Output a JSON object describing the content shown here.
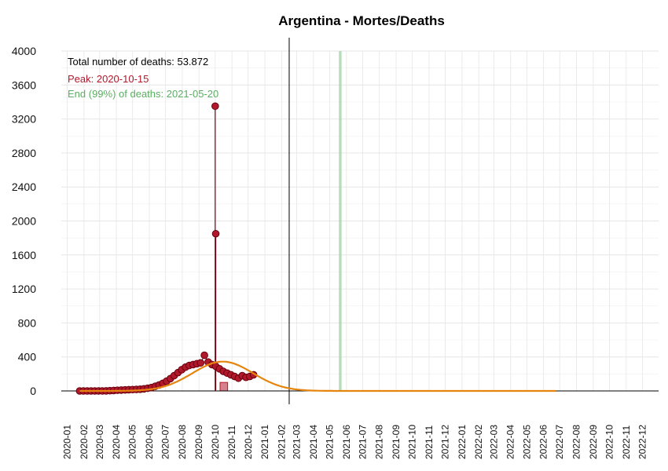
{
  "chart_data": {
    "type": "scatter",
    "title": "Argentina - Mortes/Deaths",
    "xlabel": "",
    "ylabel": "",
    "ylim": [
      0,
      4000
    ],
    "y_ticks": [
      "0",
      "400",
      "800",
      "1200",
      "1600",
      "2000",
      "2400",
      "2800",
      "3200",
      "3600",
      "4000"
    ],
    "y_tick_values": [
      0,
      400,
      800,
      1200,
      1600,
      2000,
      2400,
      2800,
      3200,
      3600,
      4000
    ],
    "x_ticks": [
      "2020-01",
      "2020-02",
      "2020-03",
      "2020-04",
      "2020-05",
      "2020-06",
      "2020-07",
      "2020-08",
      "2020-09",
      "2020-10",
      "2020-11",
      "2020-12",
      "2021-01",
      "2021-02",
      "2021-03",
      "2021-04",
      "2021-05",
      "2021-06",
      "2021-07",
      "2021-08",
      "2021-09",
      "2021-10",
      "2021-11",
      "2021-12",
      "2022-01",
      "2022-02",
      "2022-03",
      "2022-04",
      "2022-05",
      "2022-06",
      "2022-07",
      "2022-08",
      "2022-09",
      "2022-10",
      "2022-11",
      "2022-12"
    ],
    "xlim": [
      "2019-12-21",
      "2022-12-31"
    ],
    "grid": true,
    "annotations": {
      "total": "Total number of deaths: 53.872",
      "peak": "Peak: 2020-10-15",
      "end": "End (99%) of deaths: 2021-05-20"
    },
    "observed_daily_deaths": {
      "start_date": "2020-01-24",
      "interval_days": 7,
      "values": [
        0,
        0,
        0,
        0,
        0,
        0,
        0,
        1,
        3,
        5,
        8,
        10,
        12,
        14,
        16,
        18,
        20,
        25,
        32,
        40,
        55,
        70,
        90,
        115,
        145,
        180,
        215,
        250,
        280,
        300,
        310,
        320,
        330,
        420,
        340,
        310,
        290,
        260,
        230,
        210,
        190,
        170,
        150,
        180,
        160,
        170,
        190
      ]
    },
    "spikes": [
      {
        "date": "2020-10-01",
        "value": 3351
      },
      {
        "date": "2020-10-02",
        "value": 1850
      }
    ],
    "last_observed_date": "2021-02-14",
    "fitted_curve": {
      "peak_date": "2020-10-15",
      "peak_value": 345,
      "sigma_days": 56,
      "end_date": "2022-06-25"
    },
    "peak_band": {
      "start": "2020-10-10",
      "end": "2020-10-24",
      "value": 100
    },
    "today_line_date": "2021-02-15",
    "end_band": {
      "start": "2021-05-18",
      "end": "2021-05-23"
    },
    "colors": {
      "points": "#b2182b",
      "points_stroke": "#67000d",
      "curve": "#e6850e",
      "peak": "#b2182b",
      "end": "#5aae61",
      "end_band": "#a6d4a9",
      "grid": "#e6e6e6",
      "text": "#000000"
    }
  }
}
